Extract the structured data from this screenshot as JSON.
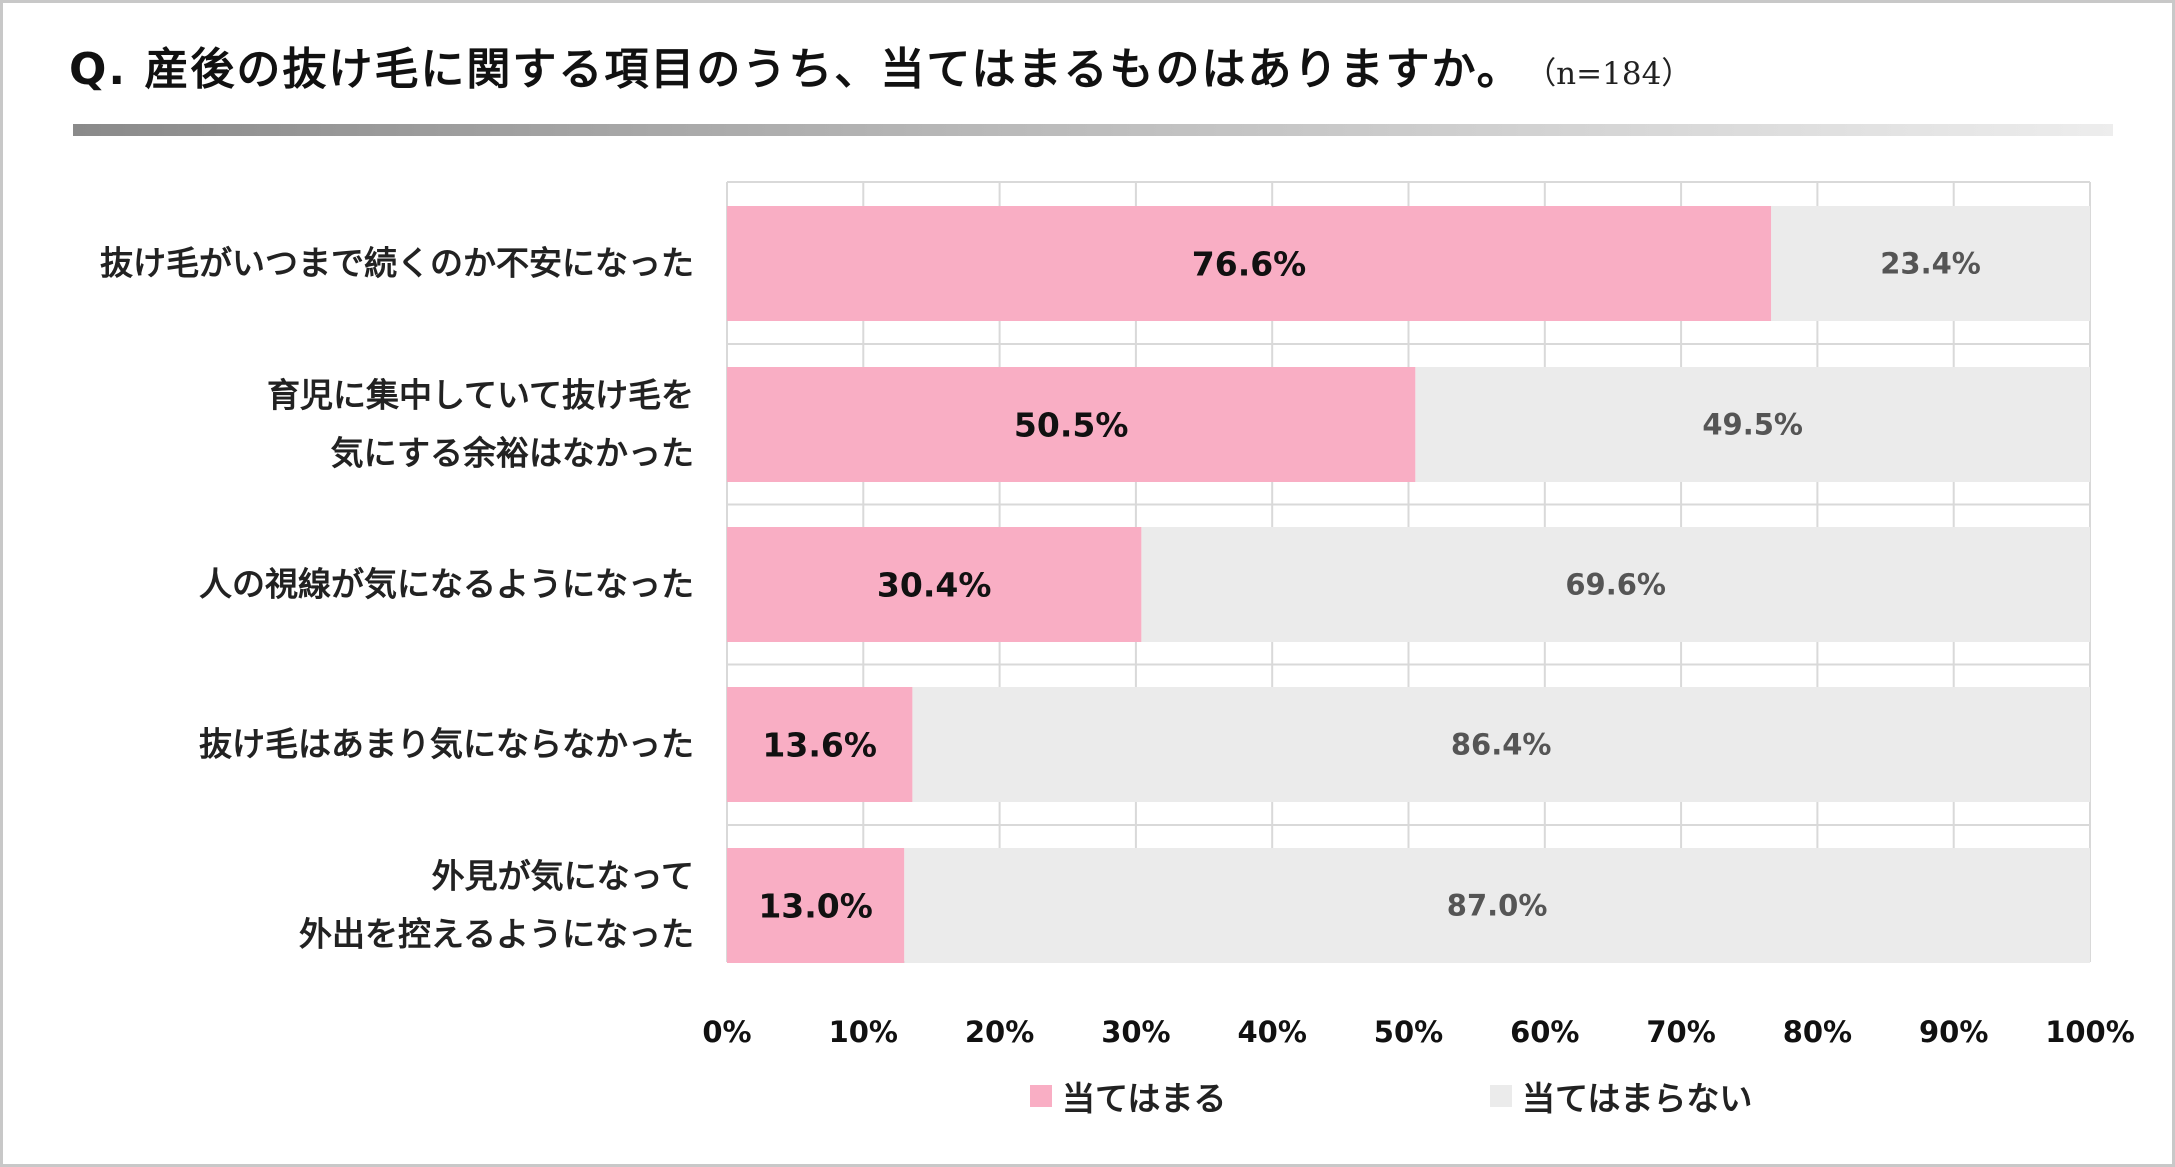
{
  "title": {
    "question": "Q. 産後の抜け毛に関する項目のうち、当てはまるものはありますか。",
    "sample": "（n=184）"
  },
  "chart_data": {
    "type": "bar",
    "orientation": "horizontal",
    "stacked": true,
    "percent": true,
    "categories": [
      "抜け毛がいつまで続くのか不安になった",
      "育児に集中していて抜け毛を\n気にする余裕はなかった",
      "人の視線が気になるようになった",
      "抜け毛はあまり気にならなかった",
      "外見が気になって\n外出を控えるようになった"
    ],
    "series": [
      {
        "name": "当てはまる",
        "values": [
          76.6,
          50.5,
          30.4,
          13.6,
          13.0
        ],
        "color": "#f9aec4"
      },
      {
        "name": "当てはまらない",
        "values": [
          23.4,
          49.5,
          69.6,
          86.4,
          87.0
        ],
        "color": "#ebebeb"
      }
    ],
    "value_labels": {
      "当てはまる": [
        "76.6%",
        "50.5%",
        "30.4%",
        "13.6%",
        "13.0%"
      ],
      "当てはまらない": [
        "23.4%",
        "49.5%",
        "69.6%",
        "86.4%",
        "87.0%"
      ]
    },
    "xlim": [
      0,
      100
    ],
    "xticks": [
      "0%",
      "10%",
      "20%",
      "30%",
      "40%",
      "50%",
      "60%",
      "70%",
      "80%",
      "90%",
      "100%"
    ],
    "grid": true,
    "legend": "bottom-center"
  },
  "legend": {
    "yes_label": "当てはまる",
    "no_label": "当てはまらない"
  },
  "colors": {
    "yes": "#f9aec4",
    "no": "#ebebeb",
    "grid": "#d9d9d9"
  }
}
